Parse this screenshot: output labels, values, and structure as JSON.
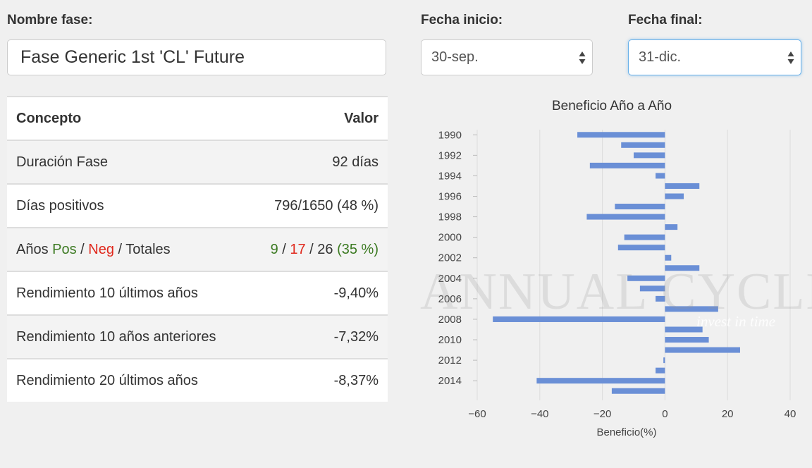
{
  "form": {
    "phase_name_label": "Nombre fase:",
    "phase_name_value": "Fase Generic 1st 'CL' Future",
    "start_date_label": "Fecha inicio:",
    "start_date_value": "30-sep.",
    "end_date_label": "Fecha final:",
    "end_date_value": "31-dic."
  },
  "table": {
    "header": {
      "concept": "Concepto",
      "value": "Valor"
    },
    "rows": [
      {
        "concept": "Duración Fase",
        "value": "92 días"
      },
      {
        "concept": "Días positivos",
        "value": "796/1650 (48 %)"
      },
      {
        "concept_parts": {
          "prefix": "Años ",
          "pos": "Pos",
          "sep1": " / ",
          "neg": "Neg",
          "suffix": " / Totales"
        },
        "value_parts": {
          "pos": "9",
          "sep1": " / ",
          "neg": "17",
          "sep2": " / 26 ",
          "pct": "(35 %)"
        }
      },
      {
        "concept": "Rendimiento 10 últimos años",
        "value": "-9,40%"
      },
      {
        "concept": "Rendimiento 10 años anteriores",
        "value": "-7,32%"
      },
      {
        "concept": "Rendimiento 20 últimos años",
        "value": "-8,37%"
      }
    ]
  },
  "colors": {
    "positive": "#3c7a22",
    "negative": "#e0281c",
    "bar": "#6a8fd6"
  },
  "watermark": {
    "brand": "ANNUAL CYCLES",
    "tagline": "invest in time"
  },
  "chart_data": {
    "type": "bar",
    "orientation": "horizontal",
    "title": "Beneficio Año a Año",
    "xlabel": "Beneficio(%)",
    "ylabel": "",
    "xlim": [
      -60,
      40
    ],
    "xticks": [
      -60,
      -40,
      -20,
      0,
      20,
      40
    ],
    "yticks": [
      "1990",
      "1992",
      "1994",
      "1996",
      "1998",
      "2000",
      "2002",
      "2004",
      "2006",
      "2008",
      "2010",
      "2012",
      "2014"
    ],
    "grid": "vertical",
    "categories": [
      "1990",
      "1991",
      "1992",
      "1993",
      "1994",
      "1995",
      "1996",
      "1997",
      "1998",
      "1999",
      "2000",
      "2001",
      "2002",
      "2003",
      "2004",
      "2005",
      "2006",
      "2007",
      "2008",
      "2009",
      "2010",
      "2011",
      "2012",
      "2013",
      "2014",
      "2015"
    ],
    "values": [
      -28,
      -14,
      -10,
      -24,
      -3,
      11,
      6,
      -16,
      -25,
      4,
      -13,
      -15,
      2,
      11,
      -12,
      -8,
      -3,
      17,
      -55,
      12,
      14,
      24,
      -0.5,
      -3,
      -41,
      -17
    ]
  }
}
